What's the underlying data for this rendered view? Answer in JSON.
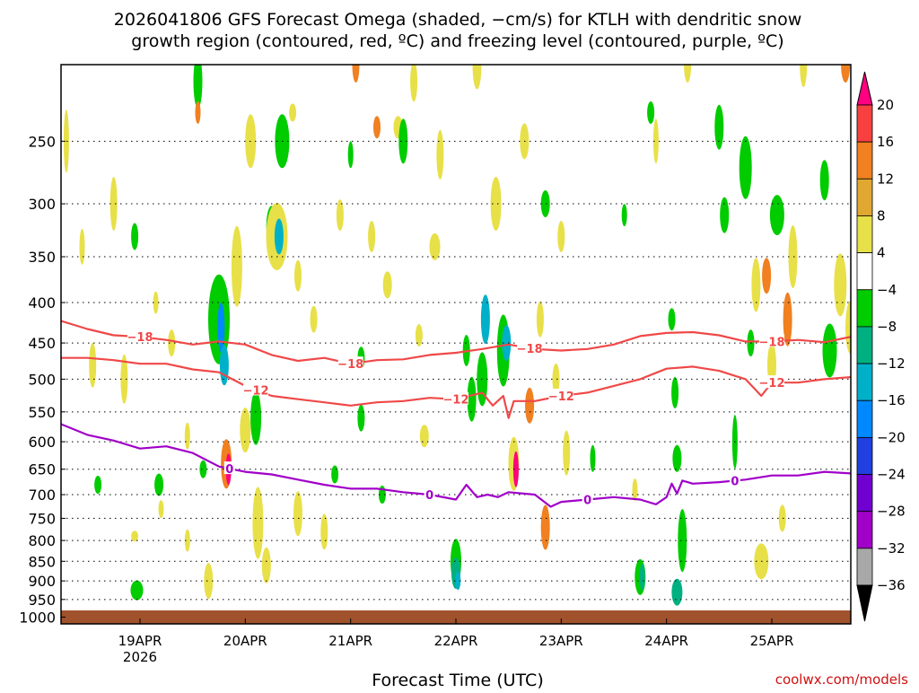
{
  "chart_data": {
    "type": "heatmap",
    "title_line1": "2026041806 GFS Forecast Omega (shaded, −cm/s) for KTLH with dendritic snow",
    "title_line2": "growth region (contoured, red, ºC) and freezing level (contoured, purple, ºC)",
    "xlabel": "Forecast Time (UTC)",
    "credit": "coolwx.com/models",
    "x_tick_labels": [
      "19APR",
      "20APR",
      "21APR",
      "22APR",
      "23APR",
      "24APR",
      "25APR"
    ],
    "x_year_label": "2026",
    "x_range_days": [
      18.25,
      25.75
    ],
    "y_tick_labels": [
      "250",
      "300",
      "350",
      "400",
      "450",
      "500",
      "550",
      "600",
      "650",
      "700",
      "750",
      "800",
      "850",
      "900",
      "950",
      "1000"
    ],
    "y_tick_values": [
      250,
      300,
      350,
      400,
      450,
      500,
      550,
      600,
      650,
      700,
      750,
      800,
      850,
      900,
      950,
      1000
    ],
    "y_range_hpa": [
      200,
      1020
    ],
    "y_scale": "log",
    "colorbar": {
      "labels": [
        "20",
        "16",
        "12",
        "8",
        "4",
        "−4",
        "−8",
        "−12",
        "−16",
        "−20",
        "−24",
        "−28",
        "−32",
        "−36"
      ],
      "colors": [
        "#ff0080",
        "#f84040",
        "#f08020",
        "#e0a830",
        "#e8e048",
        "#ffffff",
        "#00cc00",
        "#00b080",
        "#00b0c8",
        "#0088ff",
        "#2040e0",
        "#7000d0",
        "#a000c8",
        "#a8a8a8",
        "#000000"
      ]
    },
    "contours": [
      {
        "name": "dgz_top",
        "label": "−18",
        "color": "#f04848",
        "points": [
          [
            18.25,
            422
          ],
          [
            18.5,
            432
          ],
          [
            18.75,
            440
          ],
          [
            19.0,
            442
          ],
          [
            19.25,
            446
          ],
          [
            19.5,
            452
          ],
          [
            19.75,
            448
          ],
          [
            20.0,
            452
          ],
          [
            20.25,
            466
          ],
          [
            20.5,
            474
          ],
          [
            20.75,
            470
          ],
          [
            21.0,
            478
          ],
          [
            21.25,
            473
          ],
          [
            21.5,
            472
          ],
          [
            21.75,
            466
          ],
          [
            22.0,
            463
          ],
          [
            22.25,
            458
          ],
          [
            22.5,
            452
          ],
          [
            22.75,
            458
          ],
          [
            23.0,
            460
          ],
          [
            23.25,
            458
          ],
          [
            23.5,
            452
          ],
          [
            23.75,
            441
          ],
          [
            24.0,
            437
          ],
          [
            24.25,
            436
          ],
          [
            24.5,
            440
          ],
          [
            24.75,
            448
          ],
          [
            25.0,
            448
          ],
          [
            25.25,
            446
          ],
          [
            25.5,
            449
          ],
          [
            25.75,
            442
          ]
        ],
        "label_x": [
          19.0,
          21.0,
          22.7,
          25.0
        ]
      },
      {
        "name": "dgz_bottom",
        "label": "−12",
        "color": "#f04848",
        "points": [
          [
            18.25,
            470
          ],
          [
            18.5,
            470
          ],
          [
            18.75,
            473
          ],
          [
            19.0,
            478
          ],
          [
            19.25,
            478
          ],
          [
            19.5,
            486
          ],
          [
            19.75,
            490
          ],
          [
            20.0,
            510
          ],
          [
            20.25,
            525
          ],
          [
            20.5,
            530
          ],
          [
            20.75,
            535
          ],
          [
            21.0,
            540
          ],
          [
            21.25,
            535
          ],
          [
            21.5,
            533
          ],
          [
            21.75,
            528
          ],
          [
            22.0,
            530
          ],
          [
            22.25,
            520
          ],
          [
            22.35,
            540
          ],
          [
            22.45,
            525
          ],
          [
            22.5,
            560
          ],
          [
            22.55,
            533
          ],
          [
            22.75,
            533
          ],
          [
            23.0,
            525
          ],
          [
            23.25,
            520
          ],
          [
            23.5,
            510
          ],
          [
            23.75,
            500
          ],
          [
            24.0,
            485
          ],
          [
            24.25,
            482
          ],
          [
            24.5,
            488
          ],
          [
            24.75,
            500
          ],
          [
            24.9,
            525
          ],
          [
            25.0,
            505
          ],
          [
            25.25,
            505
          ],
          [
            25.5,
            500
          ],
          [
            25.75,
            497
          ]
        ],
        "label_x": [
          20.1,
          22.0,
          23.0,
          25.0
        ]
      },
      {
        "name": "freezing_level",
        "label": "0",
        "color": "#a000c8",
        "points": [
          [
            18.25,
            570
          ],
          [
            18.5,
            588
          ],
          [
            18.75,
            598
          ],
          [
            19.0,
            612
          ],
          [
            19.25,
            608
          ],
          [
            19.5,
            620
          ],
          [
            19.75,
            645
          ],
          [
            20.0,
            655
          ],
          [
            20.25,
            660
          ],
          [
            20.5,
            670
          ],
          [
            20.75,
            680
          ],
          [
            21.0,
            688
          ],
          [
            21.25,
            688
          ],
          [
            21.5,
            695
          ],
          [
            21.75,
            700
          ],
          [
            22.0,
            710
          ],
          [
            22.1,
            680
          ],
          [
            22.2,
            705
          ],
          [
            22.3,
            700
          ],
          [
            22.4,
            705
          ],
          [
            22.5,
            695
          ],
          [
            22.75,
            700
          ],
          [
            22.9,
            725
          ],
          [
            23.0,
            715
          ],
          [
            23.25,
            710
          ],
          [
            23.5,
            705
          ],
          [
            23.75,
            710
          ],
          [
            23.9,
            720
          ],
          [
            24.0,
            705
          ],
          [
            24.05,
            678
          ],
          [
            24.1,
            698
          ],
          [
            24.15,
            672
          ],
          [
            24.25,
            678
          ],
          [
            24.5,
            675
          ],
          [
            24.75,
            670
          ],
          [
            25.0,
            662
          ],
          [
            25.25,
            662
          ],
          [
            25.5,
            655
          ],
          [
            25.75,
            658
          ]
        ],
        "label_x": [
          19.85,
          21.75,
          23.25,
          24.65
        ]
      }
    ]
  }
}
